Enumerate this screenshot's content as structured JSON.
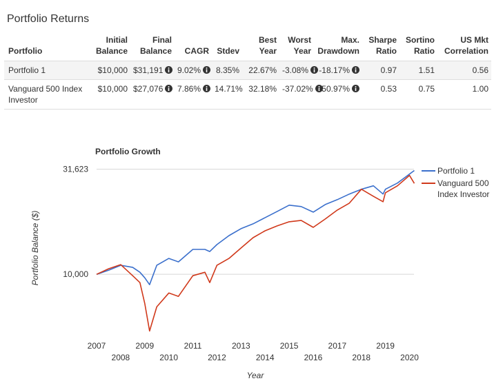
{
  "header": {
    "title": "Portfolio Returns"
  },
  "table": {
    "columns": [
      "Portfolio",
      "Initial Balance",
      "Final Balance",
      "CAGR",
      "Stdev",
      "Best Year",
      "Worst Year",
      "Max. Drawdown",
      "Sharpe Ratio",
      "Sortino Ratio",
      "US Mkt Correlation"
    ],
    "rows": [
      [
        "Portfolio 1",
        "$10,000",
        "$31,191",
        "9.02%",
        "8.35%",
        "22.67%",
        "-3.08%",
        "-18.17%",
        "0.97",
        "1.51",
        "0.56"
      ],
      [
        "Vanguard 500 Index Investor",
        "$10,000",
        "$27,076",
        "7.86%",
        "14.71%",
        "32.18%",
        "-37.02%",
        "-50.97%",
        "0.53",
        "0.75",
        "1.00"
      ]
    ]
  },
  "chart_data": {
    "type": "line",
    "title": "Portfolio Growth",
    "x_label": "Year",
    "y_label": "Portfolio Balance ($)",
    "y_scale": "log",
    "grid": true,
    "legend": "right",
    "x": [
      2007,
      2007.5,
      2008,
      2008.5,
      2008.8,
      2009,
      2009.2,
      2009.5,
      2010,
      2010.4,
      2011,
      2011.5,
      2011.7,
      2012,
      2012.5,
      2013,
      2013.5,
      2014,
      2014.5,
      2015,
      2015.5,
      2016,
      2016.5,
      2017,
      2017.5,
      2018,
      2018.5,
      2018.9,
      2019,
      2019.5,
      2020,
      2020.2
    ],
    "series": [
      {
        "name": "Portfolio 1",
        "color": "#3a6fcc",
        "values": [
          10000,
          10465,
          11040,
          10790,
          10230,
          9630,
          8930,
          11040,
          11900,
          11460,
          13140,
          13140,
          12840,
          13850,
          15280,
          16490,
          17390,
          18610,
          19920,
          21330,
          21010,
          19770,
          21480,
          22660,
          24080,
          25390,
          26370,
          24080,
          25390,
          27180,
          29990,
          31191
        ]
      },
      {
        "name": "Vanguard 500 Index Investor",
        "color": "#d0381a",
        "values": [
          10000,
          10630,
          11120,
          9850,
          9130,
          7270,
          5370,
          7000,
          8150,
          7850,
          9850,
          10230,
          9130,
          11040,
          11900,
          13340,
          14940,
          16110,
          17000,
          17780,
          18060,
          16730,
          18330,
          20220,
          21810,
          25390,
          23520,
          22150,
          24440,
          26370,
          29550,
          27076
        ]
      }
    ],
    "xlim": [
      2007,
      2020.3
    ],
    "xticks": [
      2007,
      2008,
      2009,
      2010,
      2011,
      2012,
      2013,
      2014,
      2015,
      2016,
      2017,
      2018,
      2019,
      2020
    ],
    "ylim": [
      5000,
      33000
    ],
    "yticks": [
      {
        "value": 10000,
        "label": "10,000"
      },
      {
        "value": 31623,
        "label": "31,623"
      }
    ]
  }
}
